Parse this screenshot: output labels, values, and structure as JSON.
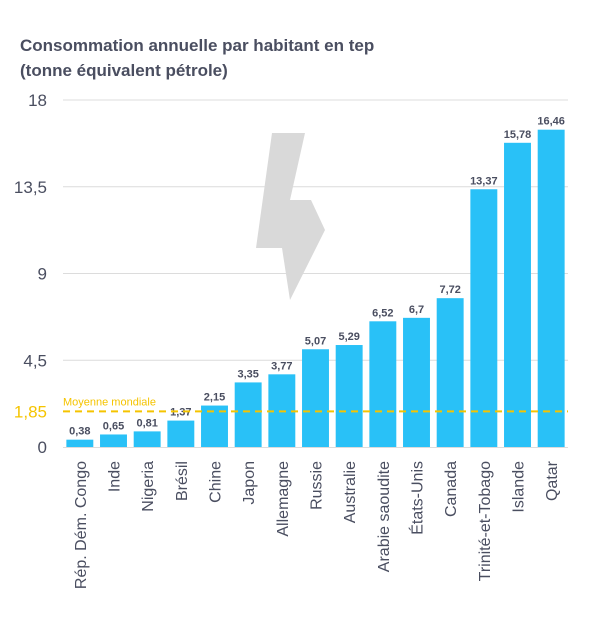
{
  "chart_data": {
    "type": "bar",
    "title": "Consommation annuelle par habitant en tep",
    "subtitle": "(tonne équivalent pétrole)",
    "categories": [
      "Rép. Dém. Congo",
      "Inde",
      "Nigeria",
      "Brésil",
      "Chine",
      "Japon",
      "Allemagne",
      "Russie",
      "Australie",
      "Arabie saoudite",
      "États-Unis",
      "Canada",
      "Trinité-et-Tobago",
      "Islande",
      "Qatar"
    ],
    "values": [
      0.38,
      0.65,
      0.81,
      1.37,
      2.15,
      3.35,
      3.77,
      5.07,
      5.29,
      6.52,
      6.7,
      7.72,
      13.37,
      15.78,
      16.46
    ],
    "value_labels": [
      "0,38",
      "0,65",
      "0,81",
      "1,37",
      "2,15",
      "3,35",
      "3,77",
      "5,07",
      "5,29",
      "6,52",
      "6,7",
      "7,72",
      "13,37",
      "15,78",
      "16,46"
    ],
    "yticks": [
      0,
      4.5,
      9,
      13.5,
      18
    ],
    "ytick_labels": [
      "0",
      "4,5",
      "9",
      "13,5",
      "18"
    ],
    "ylim": [
      0,
      18
    ],
    "grid": true,
    "reference_line": {
      "value": 1.85,
      "label": "Moyenne mondiale",
      "tick_label": "1,85"
    },
    "colors": {
      "bar": "#29c1f7",
      "average": "#f5c400",
      "text": "#4a4e60",
      "grid": "#dcdcdc",
      "bolt": "#d9d9d9"
    },
    "decoration": "lightning-bolt-icon"
  }
}
